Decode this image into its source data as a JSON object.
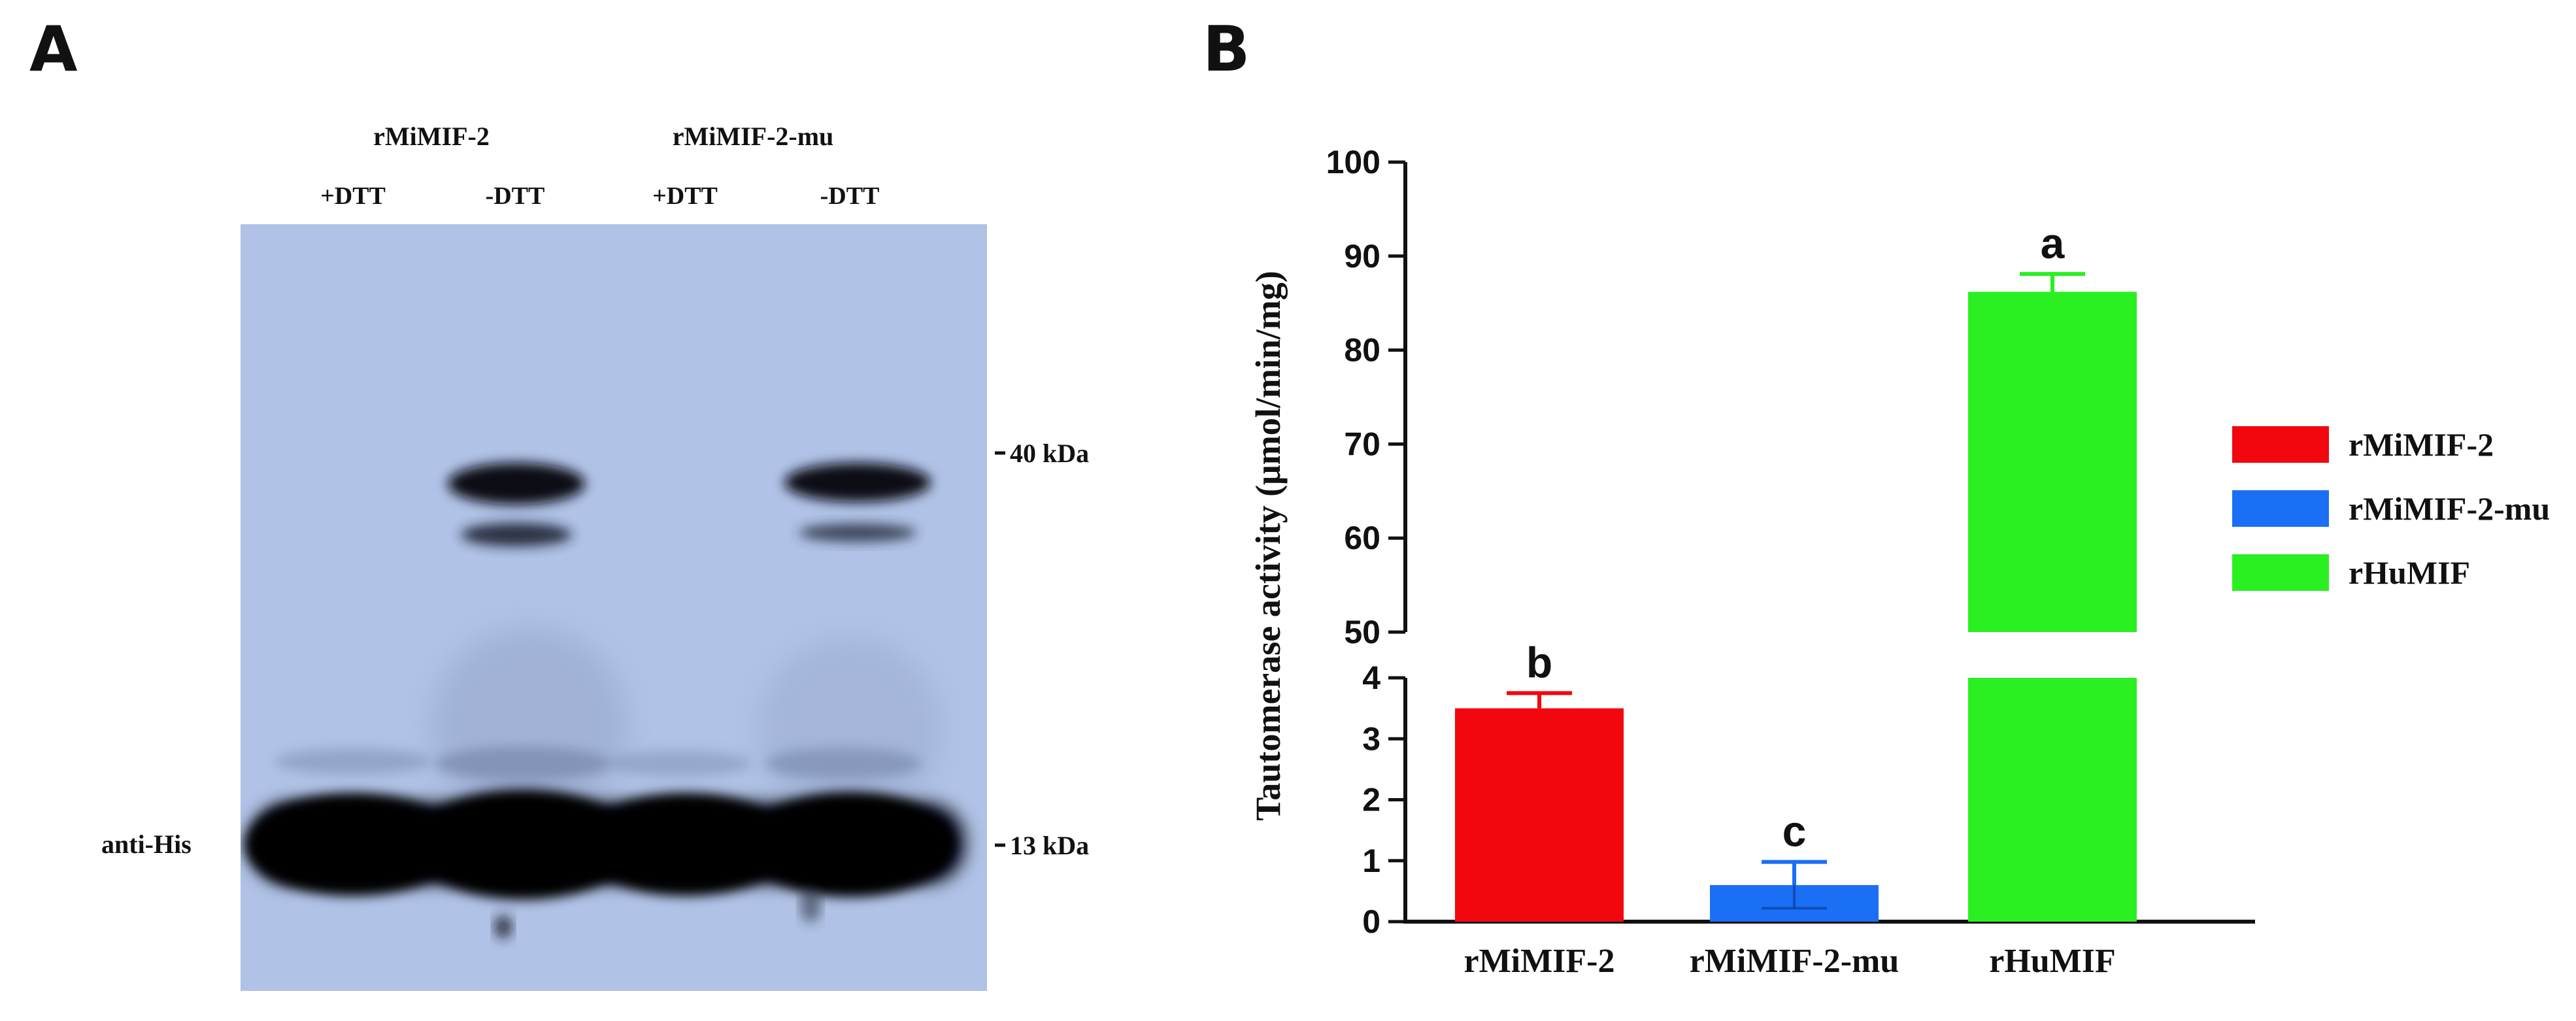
{
  "panel_a": {
    "letter": "A",
    "sample_groups": [
      "rMiMIF-2",
      "rMiMIF-2-mu"
    ],
    "lanes": [
      "+DTT",
      "-DTT",
      "+DTT",
      "-DTT"
    ],
    "left_label": "anti-His",
    "markers": [
      "40 kDa",
      "13 kDa"
    ],
    "membrane_color": "#b0c2e6"
  },
  "panel_b": {
    "letter": "B"
  },
  "chart_data": {
    "type": "bar",
    "categories": [
      "rMiMIF-2",
      "rMiMIF-2-mu",
      "rHuMIF"
    ],
    "values": [
      3.5,
      0.6,
      86.2
    ],
    "errors": [
      0.25,
      0.38,
      1.9
    ],
    "colors": [
      "#f2070f",
      "#1a6ff5",
      "#2af022"
    ],
    "significance_letters": [
      "b",
      "c",
      "a"
    ],
    "ylabel": "Tautomerase activity (μmol/min/mg)",
    "axis_break": true,
    "lower_ylim": [
      0,
      4
    ],
    "upper_ylim": [
      50,
      100
    ],
    "lower_ticks": [
      "0",
      "1",
      "2",
      "3",
      "4"
    ],
    "upper_ticks": [
      "50",
      "60",
      "70",
      "80",
      "90",
      "100"
    ],
    "legend": [
      "rMiMIF-2",
      "rMiMIF-2-mu",
      "rHuMIF"
    ],
    "legend_position": "right"
  }
}
